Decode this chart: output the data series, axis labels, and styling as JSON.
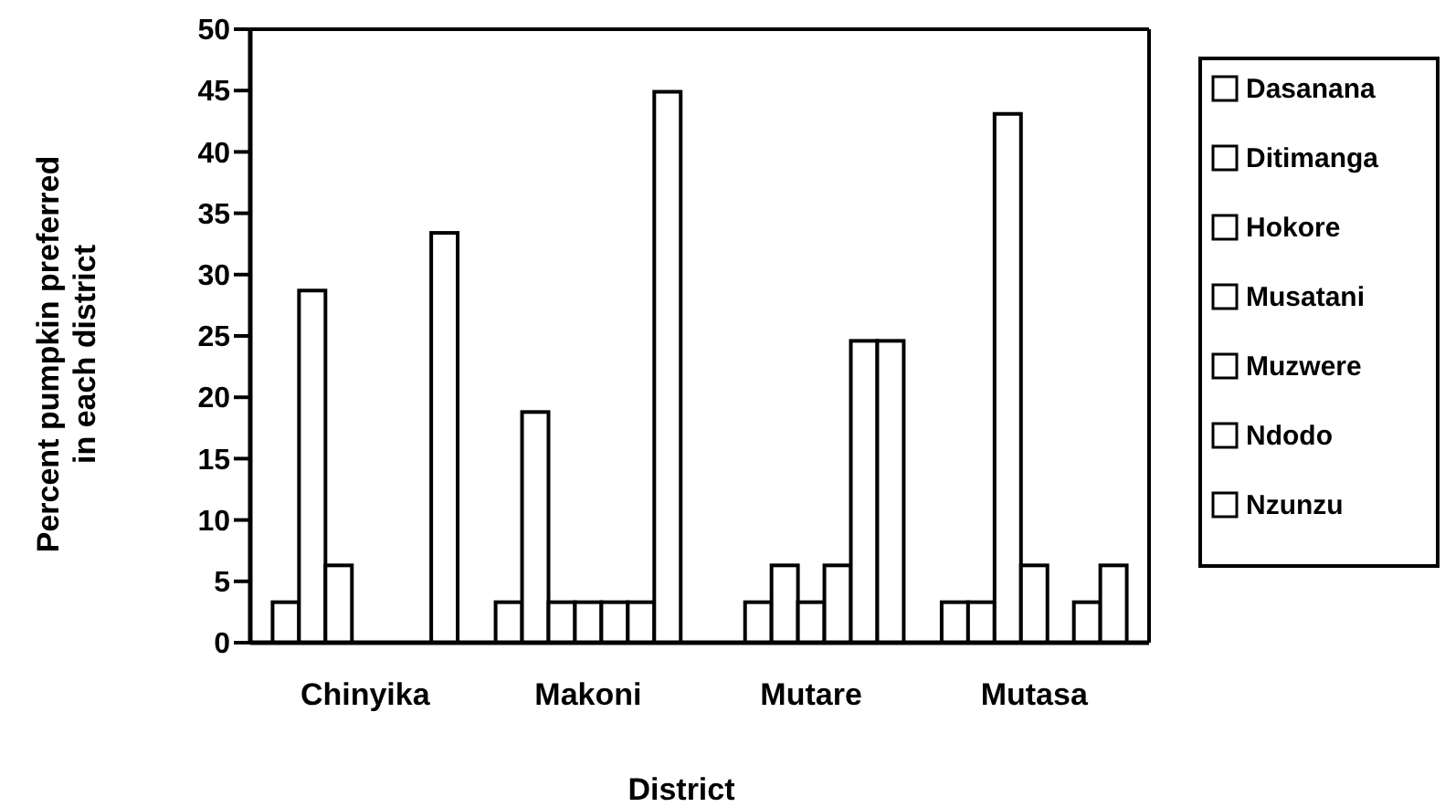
{
  "chart_data": {
    "type": "bar",
    "xlabel": "District",
    "ylabel": "Percent pumpkin preferred in each district",
    "categories": [
      "Chinyika",
      "Makoni",
      "Mutare",
      "Mutasa"
    ],
    "series": [
      {
        "name": "Dasanana",
        "color": "#ffffff",
        "values": [
          3.3,
          3.3,
          0,
          3.3
        ]
      },
      {
        "name": "Ditimanga",
        "color": "#ffffff",
        "values": [
          28.7,
          18.8,
          3.3,
          3.3
        ]
      },
      {
        "name": "Hokore",
        "color": "#ffffff",
        "values": [
          6.3,
          3.3,
          6.3,
          43.1
        ]
      },
      {
        "name": "Musatani",
        "color": "#ffffff",
        "values": [
          0,
          3.3,
          3.3,
          6.3
        ]
      },
      {
        "name": "Muzwere",
        "color": "#ffffff",
        "values": [
          0,
          3.3,
          6.3,
          0
        ]
      },
      {
        "name": "Ndodo",
        "color": "#ffffff",
        "values": [
          0,
          3.3,
          24.6,
          3.3
        ]
      },
      {
        "name": "Nzunzu",
        "color": "#ffffff",
        "values": [
          33.4,
          44.9,
          24.6,
          6.3
        ]
      }
    ],
    "ylim": [
      0,
      50
    ],
    "yticks": [
      0,
      5,
      10,
      15,
      20,
      25,
      30,
      35,
      40,
      45,
      50
    ],
    "grid": false,
    "legend": "right"
  }
}
